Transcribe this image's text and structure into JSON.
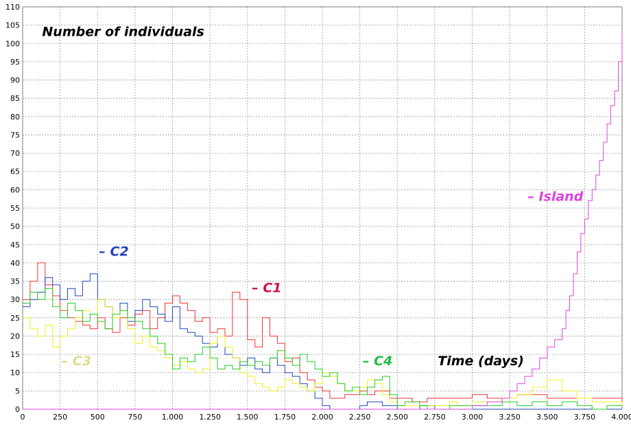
{
  "chart_data": {
    "type": "line",
    "title": "Number of individuals",
    "xlabel": "Time (days)",
    "ylabel": "",
    "xlim": [
      0,
      4000
    ],
    "ylim": [
      0,
      110
    ],
    "x_ticks": [
      0,
      250,
      500,
      750,
      1000,
      1250,
      1500,
      1750,
      2000,
      2250,
      2500,
      2750,
      3000,
      3250,
      3500,
      3750,
      4000
    ],
    "x_tick_labels": [
      "0",
      "250",
      "500",
      "750",
      "1.000",
      "1.250",
      "1.500",
      "1.750",
      "2.000",
      "2.250",
      "2.500",
      "2.750",
      "3.000",
      "3.250",
      "3.500",
      "3.750",
      "4.000"
    ],
    "y_ticks": [
      0,
      5,
      10,
      15,
      20,
      25,
      30,
      35,
      40,
      45,
      50,
      55,
      60,
      65,
      70,
      75,
      80,
      85,
      90,
      95,
      100,
      105,
      110
    ],
    "grid": true,
    "series": [
      {
        "name": "– C1",
        "color": "#ee3333",
        "x": [
          0,
          50,
          100,
          150,
          200,
          250,
          300,
          350,
          400,
          450,
          500,
          550,
          600,
          650,
          700,
          750,
          800,
          850,
          900,
          950,
          1000,
          1050,
          1100,
          1150,
          1200,
          1250,
          1300,
          1350,
          1400,
          1450,
          1500,
          1550,
          1600,
          1650,
          1700,
          1750,
          1800,
          1850,
          1900,
          1950,
          2000,
          2050,
          2100,
          2150,
          2200,
          2250,
          2300,
          2350,
          2400,
          2450,
          2500,
          2550,
          2600,
          2650,
          2700,
          2750,
          2800,
          2850,
          2900,
          2950,
          3000,
          3100,
          3200,
          3300,
          3400,
          3500,
          3600,
          3700,
          3800,
          3900,
          4000
        ],
        "y": [
          30,
          35,
          40,
          34,
          31,
          27,
          25,
          24,
          23,
          22,
          25,
          22,
          21,
          25,
          23,
          26,
          27,
          22,
          25,
          29,
          31,
          29,
          27,
          24,
          25,
          21,
          22,
          20,
          32,
          30,
          19,
          17,
          25,
          20,
          18,
          13,
          14,
          10,
          8,
          6,
          5,
          3,
          3,
          4,
          4,
          5,
          4,
          5,
          5,
          3,
          3,
          3,
          2,
          2,
          3,
          3,
          3,
          3,
          3,
          3,
          4,
          3,
          3,
          4,
          4,
          3,
          3,
          3,
          3,
          3,
          2
        ]
      },
      {
        "name": "– C2",
        "color": "#2244bb",
        "x": [
          0,
          50,
          100,
          150,
          200,
          250,
          300,
          350,
          400,
          450,
          500,
          550,
          600,
          650,
          700,
          750,
          800,
          850,
          900,
          950,
          1000,
          1050,
          1100,
          1150,
          1200,
          1250,
          1300,
          1350,
          1400,
          1450,
          1500,
          1550,
          1600,
          1650,
          1700,
          1750,
          1800,
          1850,
          1900,
          1950,
          2000,
          2050,
          2100,
          2150,
          2200,
          2250,
          2300,
          2350,
          2400,
          2450,
          2500,
          2550,
          2600,
          2650,
          2700,
          2750,
          2800,
          2850,
          2900,
          2950,
          3000,
          3100,
          3200,
          3300,
          3400,
          3500,
          3600,
          3700,
          3800,
          3900,
          4000
        ],
        "y": [
          28,
          30,
          32,
          36,
          34,
          30,
          33,
          31,
          35,
          37,
          30,
          28,
          26,
          29,
          24,
          27,
          30,
          28,
          26,
          24,
          28,
          22,
          21,
          20,
          18,
          17,
          20,
          15,
          14,
          12,
          14,
          11,
          10,
          14,
          12,
          10,
          9,
          7,
          5,
          3,
          1,
          0,
          0,
          0,
          0,
          1,
          2,
          2,
          1,
          1,
          0,
          0,
          0,
          1,
          1,
          0,
          0,
          0,
          0,
          0,
          0,
          0,
          0,
          0,
          0,
          0,
          0,
          0,
          0,
          0,
          0
        ]
      },
      {
        "name": "– C3",
        "color": "#eeee22",
        "x": [
          0,
          50,
          100,
          150,
          200,
          250,
          300,
          350,
          400,
          450,
          500,
          550,
          600,
          650,
          700,
          750,
          800,
          850,
          900,
          950,
          1000,
          1050,
          1100,
          1150,
          1200,
          1250,
          1300,
          1350,
          1400,
          1450,
          1500,
          1550,
          1600,
          1650,
          1700,
          1750,
          1800,
          1850,
          1900,
          1950,
          2000,
          2050,
          2100,
          2150,
          2200,
          2250,
          2300,
          2350,
          2400,
          2450,
          2500,
          2550,
          2600,
          2650,
          2700,
          2750,
          2800,
          2850,
          2900,
          2950,
          3000,
          3100,
          3200,
          3300,
          3400,
          3500,
          3600,
          3700,
          3800,
          3900,
          4000
        ],
        "y": [
          25,
          22,
          20,
          23,
          17,
          20,
          22,
          25,
          27,
          26,
          30,
          28,
          25,
          27,
          22,
          18,
          20,
          17,
          16,
          14,
          12,
          13,
          11,
          10,
          11,
          18,
          20,
          17,
          14,
          10,
          9,
          7,
          6,
          5,
          6,
          8,
          7,
          6,
          5,
          7,
          10,
          9,
          7,
          5,
          5,
          6,
          8,
          7,
          4,
          2,
          1,
          1,
          1,
          1,
          1,
          1,
          1,
          2,
          1,
          1,
          2,
          2,
          3,
          4,
          6,
          8,
          5,
          3,
          2,
          2,
          1
        ]
      },
      {
        "name": "– C4",
        "color": "#22cc22",
        "x": [
          0,
          50,
          100,
          150,
          200,
          250,
          300,
          350,
          400,
          450,
          500,
          550,
          600,
          650,
          700,
          750,
          800,
          850,
          900,
          950,
          1000,
          1050,
          1100,
          1150,
          1200,
          1250,
          1300,
          1350,
          1400,
          1450,
          1500,
          1550,
          1600,
          1650,
          1700,
          1750,
          1800,
          1850,
          1900,
          1950,
          2000,
          2050,
          2100,
          2150,
          2200,
          2250,
          2300,
          2350,
          2400,
          2450,
          2500,
          2550,
          2600,
          2650,
          2700,
          2750,
          2800,
          2850,
          2900,
          2950,
          3000,
          3100,
          3200,
          3300,
          3400,
          3500,
          3600,
          3700,
          3800,
          3900,
          4000
        ],
        "y": [
          29,
          32,
          30,
          33,
          28,
          25,
          29,
          27,
          24,
          26,
          24,
          22,
          26,
          27,
          25,
          24,
          22,
          20,
          18,
          15,
          11,
          14,
          13,
          15,
          17,
          14,
          11,
          12,
          11,
          13,
          12,
          13,
          12,
          14,
          16,
          14,
          12,
          15,
          13,
          11,
          9,
          10,
          7,
          5,
          6,
          4,
          6,
          8,
          9,
          4,
          1,
          2,
          2,
          1,
          0,
          0,
          0,
          1,
          1,
          1,
          1,
          1,
          2,
          1,
          2,
          1,
          2,
          1,
          0,
          1,
          1
        ]
      },
      {
        "name": "– Island",
        "color": "#dd44dd",
        "x": [
          0,
          500,
          1000,
          1500,
          2000,
          2500,
          2750,
          3000,
          3100,
          3200,
          3250,
          3300,
          3350,
          3400,
          3450,
          3500,
          3550,
          3600,
          3625,
          3650,
          3675,
          3700,
          3725,
          3750,
          3775,
          3800,
          3825,
          3850,
          3875,
          3900,
          3925,
          3950,
          3975,
          4000
        ],
        "y": [
          0,
          0,
          0,
          0,
          0,
          0,
          0,
          1,
          2,
          3,
          5,
          7,
          9,
          11,
          14,
          17,
          19,
          22,
          27,
          31,
          37,
          43,
          48,
          52,
          57,
          60,
          64,
          68,
          73,
          78,
          83,
          87,
          95,
          103
        ]
      }
    ],
    "annotations": [
      {
        "text": "Number of individuals",
        "x": 130,
        "y": 102,
        "color": "#000000"
      },
      {
        "text": "– C2",
        "x": 510,
        "y": 42,
        "color": "#2244bb"
      },
      {
        "text": "– C1",
        "x": 1530,
        "y": 32,
        "color": "#cc1144"
      },
      {
        "text": "– C3",
        "x": 260,
        "y": 12,
        "color": "#dddd88"
      },
      {
        "text": "– C4",
        "x": 2270,
        "y": 12,
        "color": "#22bb44"
      },
      {
        "text": "Time (days)",
        "x": 2770,
        "y": 12,
        "color": "#000000"
      },
      {
        "text": "– Island",
        "x": 3370,
        "y": 57,
        "color": "#dd44dd"
      }
    ]
  }
}
